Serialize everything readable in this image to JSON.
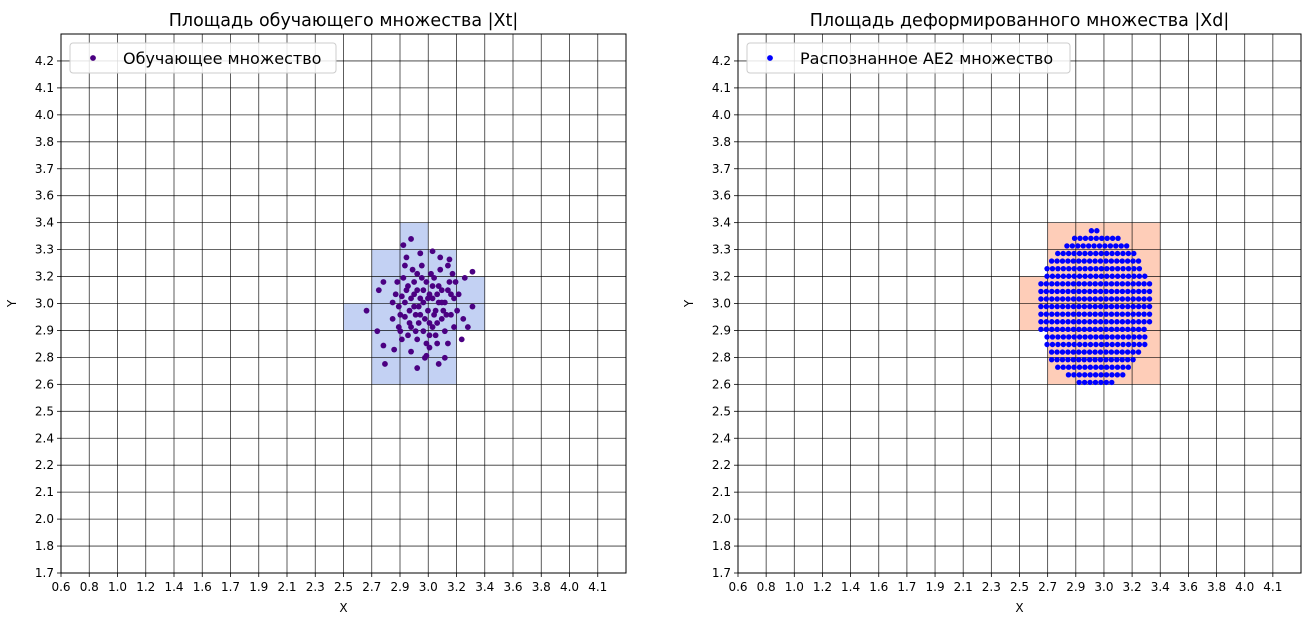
{
  "chart_data": [
    {
      "type": "scatter",
      "title": "Площадь обучающего множества |Xt|",
      "xlabel": "X",
      "ylabel": "Y",
      "xlim": [
        0.6,
        4.28
      ],
      "ylim": [
        1.7,
        4.33
      ],
      "grid": true,
      "legend_placement": "upper-left",
      "xticks": [
        "0.6",
        "0.8",
        "1.0",
        "1.2",
        "1.4",
        "1.6",
        "1.7",
        "1.9",
        "2.1",
        "2.3",
        "2.5",
        "2.7",
        "2.9",
        "3.0",
        "3.2",
        "3.4",
        "3.6",
        "3.8",
        "4.0",
        "4.1"
      ],
      "yticks": [
        "1.7",
        "1.8",
        "2.0",
        "2.1",
        "2.2",
        "2.4",
        "2.5",
        "2.6",
        "2.8",
        "2.9",
        "3.0",
        "3.2",
        "3.3",
        "3.4",
        "3.6",
        "3.7",
        "3.8",
        "4.0",
        "4.1",
        "4.2"
      ],
      "highlight_color": "#c3d1f3",
      "highlight_cells": [
        {
          "x": [
            "2.9",
            "3.0"
          ],
          "y": [
            "3.3",
            "3.4"
          ]
        },
        {
          "x": [
            "2.7",
            "3.2"
          ],
          "y": [
            "2.6",
            "3.3"
          ]
        },
        {
          "x": [
            "3.2",
            "3.4"
          ],
          "y": [
            "2.9",
            "3.2"
          ]
        },
        {
          "x": [
            "2.5",
            "2.7"
          ],
          "y": [
            "2.9",
            "3.0"
          ]
        }
      ],
      "series": [
        {
          "name": "Обучающее множество",
          "color": "#4b0082",
          "points": [
            [
              2.88,
              3.33
            ],
            [
              2.83,
              3.3
            ],
            [
              2.59,
              2.98
            ],
            [
              2.71,
              2.72
            ],
            [
              2.92,
              2.7
            ],
            [
              3.28,
              3.17
            ],
            [
              3.28,
              3.0
            ],
            [
              3.25,
              2.9
            ],
            [
              2.66,
              2.88
            ],
            [
              2.7,
              2.81
            ],
            [
              3.13,
              3.23
            ],
            [
              3.02,
              3.27
            ],
            [
              3.23,
              3.14
            ],
            [
              2.67,
              3.08
            ],
            [
              2.7,
              3.12
            ],
            [
              3.21,
              2.84
            ],
            [
              3.06,
              2.72
            ],
            [
              2.97,
              2.75
            ],
            [
              2.85,
              3.24
            ],
            [
              3.12,
              3.2
            ],
            [
              3.22,
              2.94
            ],
            [
              2.77,
              2.79
            ],
            [
              3.1,
              2.75
            ],
            [
              2.8,
              3.0
            ],
            [
              2.82,
              3.05
            ],
            [
              2.84,
              2.95
            ],
            [
              2.86,
              3.1
            ],
            [
              2.88,
              2.9
            ],
            [
              2.9,
              3.0
            ],
            [
              2.92,
              3.08
            ],
            [
              2.94,
              2.96
            ],
            [
              2.96,
              3.02
            ],
            [
              2.98,
              3.12
            ],
            [
              3.0,
              2.92
            ],
            [
              3.02,
              3.04
            ],
            [
              3.04,
              2.98
            ],
            [
              3.06,
              3.1
            ],
            [
              3.08,
              2.94
            ],
            [
              3.1,
              3.02
            ],
            [
              3.12,
              3.08
            ],
            [
              3.14,
              2.96
            ],
            [
              2.8,
              2.9
            ],
            [
              2.83,
              3.14
            ],
            [
              2.86,
              2.86
            ],
            [
              2.89,
              3.18
            ],
            [
              2.92,
              2.84
            ],
            [
              2.95,
              3.2
            ],
            [
              2.98,
              2.82
            ],
            [
              3.01,
              3.16
            ],
            [
              3.04,
              2.86
            ],
            [
              3.07,
              3.18
            ],
            [
              3.1,
              2.88
            ],
            [
              3.13,
              3.12
            ],
            [
              3.16,
              3.04
            ],
            [
              3.18,
              2.98
            ],
            [
              2.78,
              3.06
            ],
            [
              2.81,
              2.96
            ],
            [
              2.84,
              3.02
            ],
            [
              2.87,
              2.98
            ],
            [
              2.9,
              3.06
            ],
            [
              2.93,
              2.92
            ],
            [
              2.96,
              3.08
            ],
            [
              2.99,
              2.98
            ],
            [
              3.02,
              2.9
            ],
            [
              3.05,
              3.06
            ],
            [
              3.08,
              3.02
            ],
            [
              3.11,
              2.96
            ],
            [
              3.14,
              3.06
            ],
            [
              2.85,
              3.08
            ],
            [
              2.88,
              3.04
            ],
            [
              2.91,
              2.96
            ],
            [
              2.94,
              3.04
            ],
            [
              2.97,
              2.94
            ],
            [
              3.0,
              3.06
            ],
            [
              3.03,
              2.96
            ],
            [
              3.06,
              3.02
            ],
            [
              3.09,
              2.98
            ],
            [
              2.87,
              2.92
            ],
            [
              2.9,
              3.12
            ],
            [
              2.93,
              3.0
            ],
            [
              2.96,
              2.88
            ],
            [
              2.99,
              3.04
            ],
            [
              3.02,
              3.1
            ],
            [
              3.05,
              2.92
            ],
            [
              3.08,
              3.08
            ],
            [
              2.95,
              3.14
            ],
            [
              3.0,
              2.86
            ],
            [
              2.91,
              2.88
            ],
            [
              3.03,
              3.14
            ],
            [
              2.82,
              2.84
            ],
            [
              2.79,
              3.12
            ],
            [
              3.16,
              2.9
            ],
            [
              3.17,
              3.12
            ],
            [
              2.94,
              3.26
            ],
            [
              3.0,
              2.8
            ],
            [
              2.88,
              2.78
            ],
            [
              3.12,
              2.82
            ],
            [
              2.76,
              2.94
            ],
            [
              3.19,
              3.06
            ],
            [
              2.84,
              3.2
            ],
            [
              3.07,
              3.24
            ],
            [
              2.98,
              2.76
            ],
            [
              2.92,
              3.16
            ],
            [
              3.05,
              2.82
            ],
            [
              2.76,
              3.02
            ],
            [
              3.15,
              3.16
            ],
            [
              2.81,
              2.88
            ]
          ]
        }
      ]
    },
    {
      "type": "scatter",
      "title": "Площадь деформированного множества |Xd|",
      "xlabel": "X",
      "ylabel": "Y",
      "xlim": [
        0.6,
        4.28
      ],
      "ylim": [
        1.7,
        4.33
      ],
      "grid": true,
      "legend_placement": "upper-left",
      "xticks": [
        "0.6",
        "0.8",
        "1.0",
        "1.2",
        "1.4",
        "1.6",
        "1.7",
        "1.9",
        "2.1",
        "2.3",
        "2.5",
        "2.7",
        "2.9",
        "3.0",
        "3.2",
        "3.4",
        "3.6",
        "3.8",
        "4.0",
        "4.1"
      ],
      "yticks": [
        "1.7",
        "1.8",
        "2.0",
        "2.1",
        "2.2",
        "2.4",
        "2.5",
        "2.6",
        "2.8",
        "2.9",
        "3.0",
        "3.2",
        "3.3",
        "3.4",
        "3.6",
        "3.7",
        "3.8",
        "4.0",
        "4.1",
        "4.2"
      ],
      "highlight_color": "#fecdb8",
      "highlight_cells": [
        {
          "x": [
            "2.7",
            "3.4"
          ],
          "y": [
            "2.6",
            "3.4"
          ]
        },
        {
          "x": [
            "2.5",
            "2.7"
          ],
          "y": [
            "2.9",
            "3.2"
          ]
        }
      ],
      "series": [
        {
          "name": "Распознанное AE2 множество",
          "color": "#0000ff",
          "x_step": 0.0355,
          "rows": [
            {
              "y": 3.37,
              "x_min": 2.91,
              "x_max": 2.98
            },
            {
              "y": 3.333,
              "x_min": 2.8,
              "x_max": 3.1
            },
            {
              "y": 3.296,
              "x_min": 2.75,
              "x_max": 3.17
            },
            {
              "y": 3.259,
              "x_min": 2.69,
              "x_max": 3.2
            },
            {
              "y": 3.222,
              "x_min": 2.65,
              "x_max": 3.23
            },
            {
              "y": 3.185,
              "x_min": 2.62,
              "x_max": 3.25
            },
            {
              "y": 3.148,
              "x_min": 2.62,
              "x_max": 3.28
            },
            {
              "y": 3.111,
              "x_min": 2.58,
              "x_max": 3.3
            },
            {
              "y": 3.074,
              "x_min": 2.58,
              "x_max": 3.32
            },
            {
              "y": 3.037,
              "x_min": 2.58,
              "x_max": 3.32
            },
            {
              "y": 3.0,
              "x_min": 2.58,
              "x_max": 3.32
            },
            {
              "y": 2.963,
              "x_min": 2.58,
              "x_max": 3.32
            },
            {
              "y": 2.926,
              "x_min": 2.58,
              "x_max": 3.32
            },
            {
              "y": 2.889,
              "x_min": 2.58,
              "x_max": 3.28
            },
            {
              "y": 2.852,
              "x_min": 2.62,
              "x_max": 3.28
            },
            {
              "y": 2.815,
              "x_min": 2.62,
              "x_max": 3.28
            },
            {
              "y": 2.778,
              "x_min": 2.65,
              "x_max": 3.25
            },
            {
              "y": 2.741,
              "x_min": 2.65,
              "x_max": 3.21
            },
            {
              "y": 2.704,
              "x_min": 2.69,
              "x_max": 3.17
            },
            {
              "y": 2.667,
              "x_min": 2.76,
              "x_max": 3.14
            },
            {
              "y": 2.63,
              "x_min": 2.83,
              "x_max": 3.07
            }
          ]
        }
      ]
    }
  ]
}
